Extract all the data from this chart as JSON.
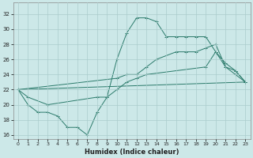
{
  "title": "",
  "xlabel": "Humidex (Indice chaleur)",
  "bg_color": "#cce8e8",
  "grid_color": "#aacccc",
  "line_color": "#2a7a6a",
  "xlim": [
    -0.5,
    23.5
  ],
  "ylim": [
    15.5,
    33.5
  ],
  "xticks": [
    0,
    1,
    2,
    3,
    4,
    5,
    6,
    7,
    8,
    9,
    10,
    11,
    12,
    13,
    14,
    15,
    16,
    17,
    18,
    19,
    20,
    21,
    22,
    23
  ],
  "yticks": [
    16,
    18,
    20,
    22,
    24,
    26,
    28,
    30,
    32
  ],
  "line1_x": [
    0,
    1,
    2,
    3,
    4,
    5,
    6,
    7,
    8,
    9,
    10,
    11,
    12,
    13,
    14,
    15,
    16,
    17,
    18,
    19,
    20,
    21,
    22,
    23
  ],
  "line1_y": [
    22,
    20,
    19,
    19,
    18.5,
    17,
    17,
    16,
    19,
    21,
    26,
    29.5,
    31.5,
    31.5,
    31,
    29,
    29,
    29,
    29,
    29,
    27,
    25,
    24,
    23
  ],
  "line2_x": [
    0,
    10,
    11,
    12,
    13,
    14,
    16,
    17,
    18,
    19,
    20,
    21,
    22,
    23
  ],
  "line2_y": [
    22,
    23.5,
    24,
    24,
    25,
    26,
    27,
    27,
    27,
    27.5,
    28,
    25,
    24.5,
    23
  ],
  "line3_x": [
    0,
    23
  ],
  "line3_y": [
    22,
    23
  ],
  "line4_x": [
    0,
    1,
    3,
    8,
    9,
    10,
    11,
    12,
    13,
    19,
    20,
    21,
    22,
    23
  ],
  "line4_y": [
    22,
    21,
    20,
    21,
    21,
    22,
    23,
    23.5,
    24,
    25,
    27,
    25.5,
    24.5,
    23
  ],
  "figsize": [
    3.2,
    2.0
  ],
  "dpi": 100
}
